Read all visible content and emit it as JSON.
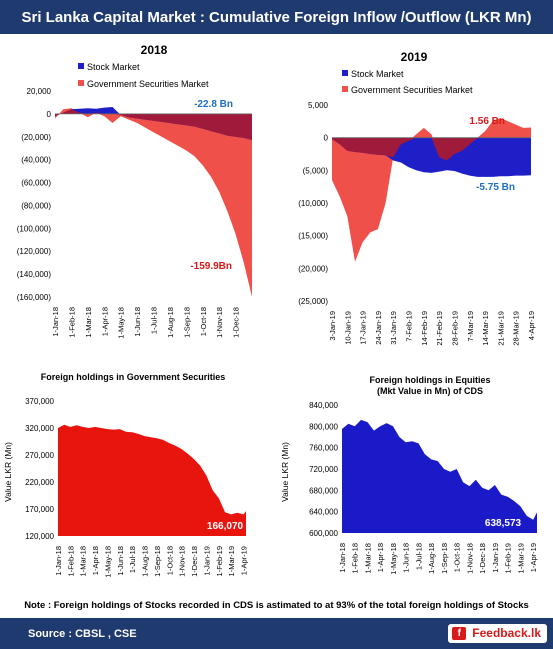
{
  "header": {
    "title": "Sri Lanka Capital Market : Cumulative Foreign Inflow /Outflow  (LKR Mn)"
  },
  "footer": {
    "source": "Source : CBSL , CSE",
    "logo_text": "Feedback.lk",
    "logo_icon": "f"
  },
  "note": "Note : Foreign holdings of Stocks recorded in CDS is astimated to at 93% of the total foreign holdings of Stocks",
  "colors": {
    "stock": "#1f1fc8",
    "gov": "#f0504a",
    "overlap": "#a01a3c",
    "banner": "#1f3a6e",
    "gov_holdings": "#e8150e",
    "equity_holdings": "#1a1ac8"
  },
  "chart_data": [
    {
      "type": "area",
      "title": "2018",
      "legend": [
        "Stock Market",
        "Government Securities Market"
      ],
      "legend_position": "top",
      "ylim": [
        -160000,
        20000
      ],
      "yticks": [
        "20,000",
        "0",
        "(20,000)",
        "(40,000)",
        "(60,000)",
        "(80,000)",
        "(100,000)",
        "(120,000)",
        "(140,000)",
        "(160,000)"
      ],
      "xticks": [
        "1-Jan-18",
        "1-Feb-18",
        "1-Mar-18",
        "1-Apr-18",
        "1-May-18",
        "1-Jun-18",
        "1-Jul-18",
        "1-Aug-18",
        "1-Sep-18",
        "1-Oct-18",
        "1-Nov-18",
        "1-Dec-18"
      ],
      "x": [
        0,
        0.5,
        1,
        1.5,
        2,
        2.5,
        3,
        3.5,
        4,
        4.5,
        5,
        5.5,
        6,
        6.5,
        7,
        7.5,
        8,
        8.5,
        9,
        9.5,
        10,
        10.5,
        11,
        11.5,
        12
      ],
      "series": [
        {
          "name": "Stock Market",
          "values": [
            -2000,
            1000,
            4000,
            4500,
            5000,
            4500,
            5500,
            6000,
            -1000,
            -3000,
            -4000,
            -5000,
            -6000,
            -7000,
            -8000,
            -9000,
            -10000,
            -11000,
            -13000,
            -15000,
            -17000,
            -19000,
            -20000,
            -21000,
            -22800
          ]
        },
        {
          "name": "Government Securities Market",
          "values": [
            -4000,
            4000,
            5000,
            1000,
            -3000,
            1000,
            -2000,
            -8000,
            -2000,
            -5000,
            -8000,
            -12000,
            -16000,
            -20000,
            -24000,
            -28000,
            -32000,
            -37000,
            -45000,
            -55000,
            -68000,
            -85000,
            -105000,
            -130000,
            -159900
          ]
        }
      ],
      "annotations": [
        "-22.8 Bn",
        "-159.9Bn"
      ]
    },
    {
      "type": "area",
      "title": "2019",
      "legend": [
        "Stock Market",
        "Government Securities Market"
      ],
      "legend_position": "top",
      "ylim": [
        -25000,
        5000
      ],
      "yticks": [
        "5,000",
        "0",
        "(5,000)",
        "(10,000)",
        "(15,000)",
        "(20,000)",
        "(25,000)"
      ],
      "xticks": [
        "3-Jan-19",
        "10-Jan-19",
        "17-Jan-19",
        "24-Jan-19",
        "31-Jan-19",
        "7-Feb-19",
        "14-Feb-19",
        "21-Feb-19",
        "28-Feb-19",
        "7-Mar-19",
        "14-Mar-19",
        "21-Mar-19",
        "28-Mar-19",
        "4-Apr-19"
      ],
      "x": [
        0,
        0.5,
        1,
        1.5,
        2,
        2.5,
        3,
        3.5,
        4,
        4.5,
        5,
        5.5,
        6,
        6.5,
        7,
        7.5,
        8,
        8.5,
        9,
        9.5,
        10,
        10.5,
        11,
        11.5,
        12,
        12.5,
        13
      ],
      "series": [
        {
          "name": "Stock Market",
          "values": [
            -200,
            -1000,
            -2000,
            -2200,
            -2300,
            -2500,
            -2600,
            -2700,
            -3500,
            -3800,
            -4500,
            -5000,
            -5300,
            -5400,
            -5200,
            -5000,
            -5100,
            -5500,
            -5800,
            -6000,
            -6000,
            -6000,
            -5900,
            -5900,
            -5800,
            -5800,
            -5750
          ]
        },
        {
          "name": "Government Securities Market",
          "values": [
            -6500,
            -9000,
            -12000,
            -19000,
            -16000,
            -14500,
            -14000,
            -10000,
            -3000,
            -1000,
            -500,
            500,
            1500,
            500,
            -3000,
            -3500,
            -2500,
            -2000,
            -1000,
            0,
            1000,
            2500,
            3000,
            2500,
            2000,
            1500,
            1560
          ]
        }
      ],
      "annotations": [
        "1.56 Bn",
        "-5.75 Bn"
      ]
    },
    {
      "type": "area",
      "title": "Foreign holdings in Government Securities",
      "ylabel": "Value LKR (Mn)",
      "ylim": [
        120000,
        370000
      ],
      "yticks": [
        "370,000",
        "320,000",
        "270,000",
        "220,000",
        "170,000",
        "120,000"
      ],
      "xticks": [
        "1-Jan-18",
        "1-Feb-18",
        "1-Mar-18",
        "1-Apr-18",
        "1-May-18",
        "1-Jun-18",
        "1-Jul-18",
        "1-Aug-18",
        "1-Sep-18",
        "1-Oct-18",
        "1-Nov-18",
        "1-Dec-18",
        "1-Jan-19",
        "1-Feb-19",
        "1-Mar-19",
        "1-Apr-19"
      ],
      "x": [
        0,
        0.5,
        1,
        1.5,
        2,
        2.5,
        3,
        3.5,
        4,
        4.5,
        5,
        5.5,
        6,
        6.5,
        7,
        7.5,
        8,
        8.5,
        9,
        9.5,
        10,
        10.5,
        11,
        11.5,
        12,
        12.5,
        13,
        13.5,
        14,
        14.5,
        15,
        15.2
      ],
      "values": [
        320000,
        326000,
        322000,
        325000,
        322000,
        320000,
        322000,
        320000,
        318000,
        317000,
        318000,
        313000,
        312000,
        309000,
        305000,
        303000,
        301000,
        298000,
        292000,
        287000,
        281000,
        272000,
        262000,
        250000,
        232000,
        205000,
        190000,
        164000,
        160000,
        163000,
        160000,
        166070
      ],
      "annotations": [
        "166,070"
      ]
    },
    {
      "type": "area",
      "title": "Foreign holdings in Equities",
      "subtitle": "(Mkt Value in Mn) of CDS",
      "ylabel": "Value LKR (Mn)",
      "ylim": [
        600000,
        840000
      ],
      "yticks": [
        "840,000",
        "800,000",
        "760,000",
        "720,000",
        "680,000",
        "640,000",
        "600,000"
      ],
      "xticks": [
        "1-Jan-18",
        "1-Feb-18",
        "1-Mar-18",
        "1-Apr-18",
        "1-May-18",
        "1-Jun-18",
        "1-Jul-18",
        "1-Aug-18",
        "1-Sep-18",
        "1-Oct-18",
        "1-Nov-18",
        "1-Dec-18",
        "1-Jan-19",
        "1-Feb-19",
        "1-Mar-19",
        "1-Apr-19"
      ],
      "x": [
        0,
        0.5,
        1,
        1.5,
        2,
        2.5,
        3,
        3.5,
        4,
        4.5,
        5,
        5.5,
        6,
        6.5,
        7,
        7.5,
        8,
        8.5,
        9,
        9.5,
        10,
        10.5,
        11,
        11.5,
        12,
        12.5,
        13,
        13.5,
        14,
        14.5,
        15,
        15.3
      ],
      "values": [
        795000,
        805000,
        800000,
        812000,
        808000,
        792000,
        800000,
        806000,
        800000,
        780000,
        770000,
        772000,
        768000,
        748000,
        738000,
        735000,
        720000,
        715000,
        720000,
        695000,
        688000,
        700000,
        685000,
        680000,
        690000,
        672000,
        668000,
        660000,
        650000,
        632000,
        625000,
        638573
      ],
      "annotations": [
        "638,573"
      ]
    }
  ]
}
